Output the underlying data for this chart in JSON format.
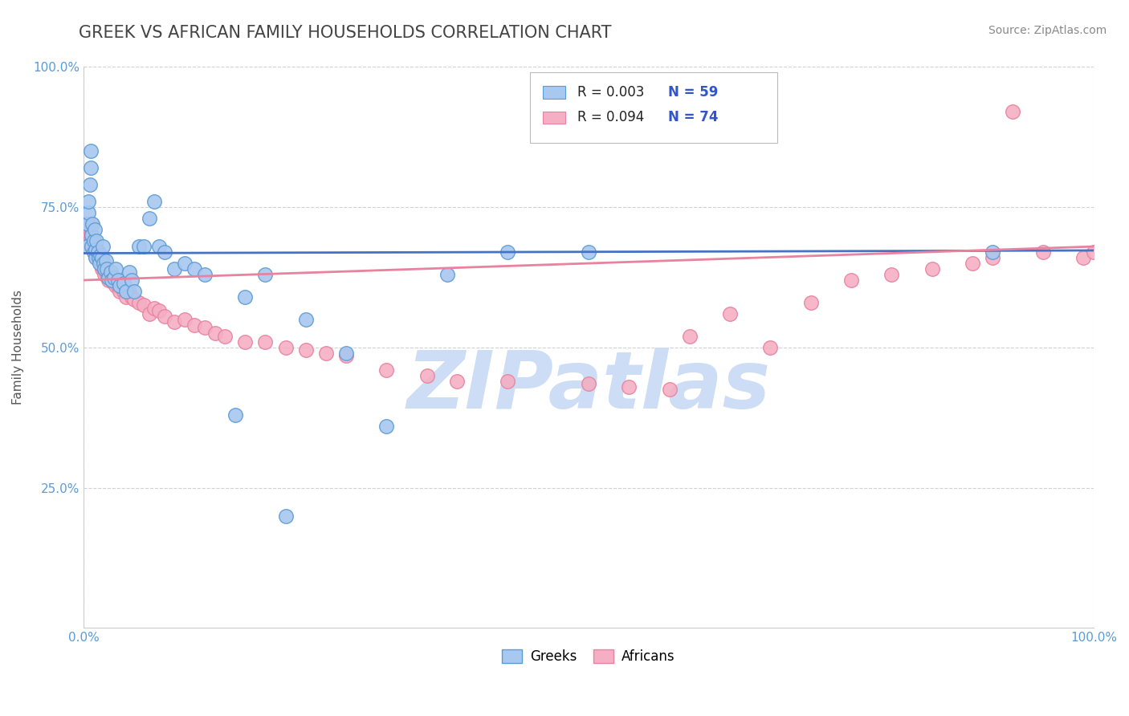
{
  "title": "GREEK VS AFRICAN FAMILY HOUSEHOLDS CORRELATION CHART",
  "source": "Source: ZipAtlas.com",
  "ylabel": "Family Households",
  "xlim": [
    0,
    1
  ],
  "ylim": [
    0,
    1
  ],
  "yticks": [
    0.0,
    0.25,
    0.5,
    0.75,
    1.0
  ],
  "ytick_labels": [
    "",
    "25.0%",
    "50.0%",
    "75.0%",
    "100.0%"
  ],
  "watermark": "ZIPatlas",
  "greek_color": "#a8c8f0",
  "greek_edge_color": "#5b9bd5",
  "african_color": "#f4afc4",
  "african_edge_color": "#e8829e",
  "greek_line_color": "#4472c4",
  "african_line_color": "#e8829e",
  "greek_scatter_x": [
    0.003,
    0.004,
    0.005,
    0.005,
    0.006,
    0.007,
    0.007,
    0.008,
    0.008,
    0.009,
    0.01,
    0.01,
    0.011,
    0.012,
    0.012,
    0.013,
    0.014,
    0.015,
    0.016,
    0.017,
    0.018,
    0.019,
    0.02,
    0.021,
    0.022,
    0.023,
    0.025,
    0.027,
    0.028,
    0.03,
    0.032,
    0.034,
    0.036,
    0.04,
    0.042,
    0.045,
    0.048,
    0.05,
    0.055,
    0.06,
    0.065,
    0.07,
    0.075,
    0.08,
    0.09,
    0.1,
    0.11,
    0.12,
    0.15,
    0.16,
    0.18,
    0.2,
    0.22,
    0.26,
    0.3,
    0.36,
    0.42,
    0.5,
    0.9
  ],
  "greek_scatter_y": [
    0.68,
    0.72,
    0.74,
    0.76,
    0.79,
    0.82,
    0.85,
    0.68,
    0.7,
    0.72,
    0.67,
    0.69,
    0.71,
    0.66,
    0.675,
    0.69,
    0.67,
    0.66,
    0.65,
    0.665,
    0.66,
    0.68,
    0.65,
    0.64,
    0.655,
    0.64,
    0.625,
    0.635,
    0.62,
    0.625,
    0.64,
    0.62,
    0.61,
    0.615,
    0.6,
    0.635,
    0.62,
    0.6,
    0.68,
    0.68,
    0.73,
    0.76,
    0.68,
    0.67,
    0.64,
    0.65,
    0.64,
    0.63,
    0.38,
    0.59,
    0.63,
    0.2,
    0.55,
    0.49,
    0.36,
    0.63,
    0.67,
    0.67,
    0.67
  ],
  "african_scatter_x": [
    0.002,
    0.003,
    0.004,
    0.005,
    0.006,
    0.007,
    0.008,
    0.008,
    0.009,
    0.01,
    0.01,
    0.011,
    0.012,
    0.013,
    0.014,
    0.015,
    0.016,
    0.017,
    0.018,
    0.019,
    0.02,
    0.021,
    0.022,
    0.023,
    0.025,
    0.027,
    0.028,
    0.03,
    0.032,
    0.034,
    0.036,
    0.04,
    0.042,
    0.045,
    0.048,
    0.05,
    0.055,
    0.06,
    0.065,
    0.07,
    0.075,
    0.08,
    0.09,
    0.1,
    0.11,
    0.12,
    0.13,
    0.14,
    0.16,
    0.18,
    0.2,
    0.22,
    0.24,
    0.26,
    0.3,
    0.34,
    0.37,
    0.42,
    0.5,
    0.54,
    0.58,
    0.6,
    0.64,
    0.68,
    0.72,
    0.76,
    0.8,
    0.84,
    0.88,
    0.9,
    0.92,
    0.95,
    0.99,
    1.0
  ],
  "african_scatter_y": [
    0.72,
    0.72,
    0.71,
    0.69,
    0.7,
    0.68,
    0.7,
    0.72,
    0.69,
    0.67,
    0.69,
    0.68,
    0.67,
    0.66,
    0.66,
    0.67,
    0.66,
    0.65,
    0.64,
    0.65,
    0.64,
    0.63,
    0.64,
    0.63,
    0.62,
    0.63,
    0.62,
    0.615,
    0.61,
    0.61,
    0.6,
    0.6,
    0.59,
    0.6,
    0.59,
    0.585,
    0.58,
    0.575,
    0.56,
    0.57,
    0.565,
    0.555,
    0.545,
    0.55,
    0.54,
    0.535,
    0.525,
    0.52,
    0.51,
    0.51,
    0.5,
    0.495,
    0.49,
    0.485,
    0.46,
    0.45,
    0.44,
    0.44,
    0.435,
    0.43,
    0.425,
    0.52,
    0.56,
    0.5,
    0.58,
    0.62,
    0.63,
    0.64,
    0.65,
    0.66,
    0.92,
    0.67,
    0.66,
    0.67
  ],
  "greek_line_x": [
    0.0,
    1.0
  ],
  "greek_line_y": [
    0.668,
    0.673
  ],
  "african_line_x": [
    0.0,
    1.0
  ],
  "african_line_y": [
    0.62,
    0.68
  ],
  "background_color": "#ffffff",
  "grid_color": "#cccccc",
  "title_color": "#444444",
  "tick_color": "#5b9bd5",
  "title_fontsize": 15,
  "axis_label_fontsize": 11,
  "tick_fontsize": 11,
  "source_fontsize": 10,
  "watermark_color": "#ccddf5",
  "watermark_fontsize": 72
}
